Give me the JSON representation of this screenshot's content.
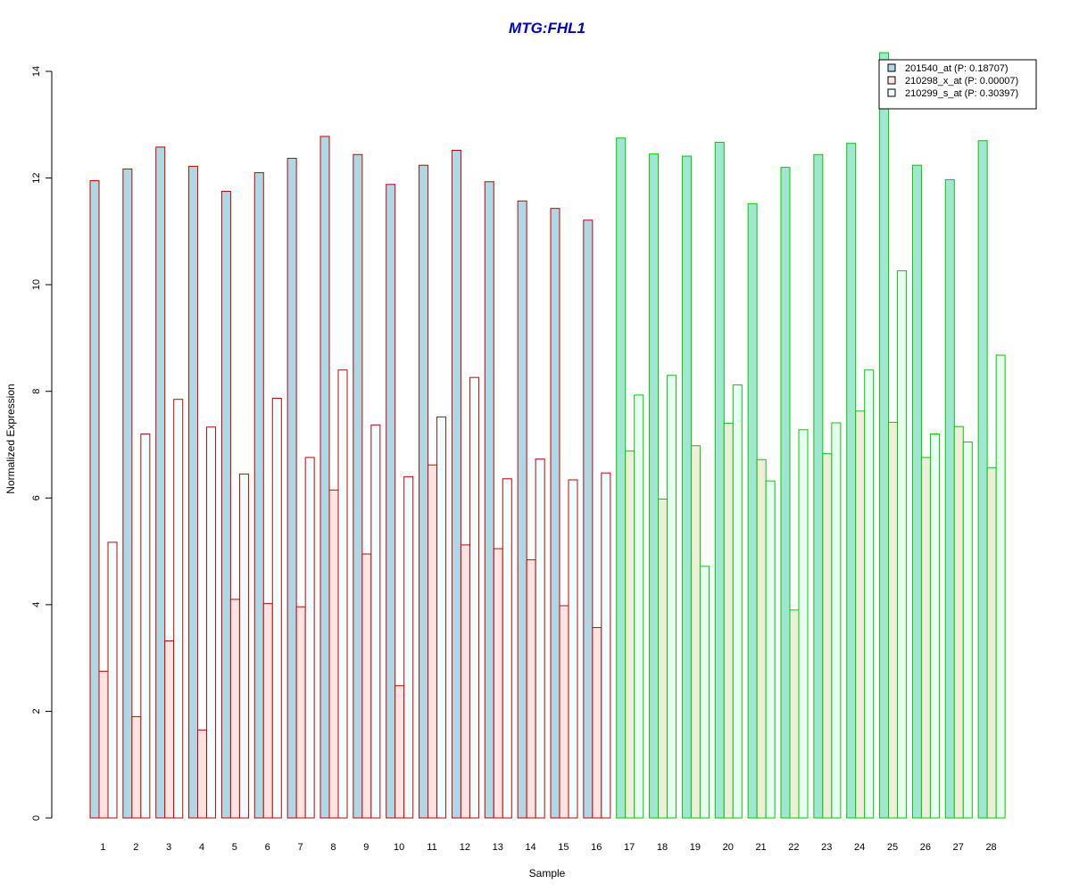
{
  "chart_data": {
    "type": "bar",
    "title": "MTG:FHL1",
    "xlabel": "Sample",
    "ylabel": "Normalized Expression",
    "ylim": [
      0,
      14
    ],
    "yticks": [
      "0",
      "2",
      "4",
      "6",
      "8",
      "10",
      "12",
      "14"
    ],
    "categories": [
      "1",
      "2",
      "3",
      "4",
      "5",
      "6",
      "7",
      "8",
      "9",
      "10",
      "11",
      "12",
      "13",
      "14",
      "15",
      "16",
      "17",
      "18",
      "19",
      "20",
      "21",
      "22",
      "23",
      "24",
      "25",
      "26",
      "27",
      "28"
    ],
    "group_border_colors": [
      "#cc0000",
      "#cc0000",
      "#cc0000",
      "#cc0000",
      "#cc0000",
      "#cc0000",
      "#cc0000",
      "#cc0000",
      "#cc0000",
      "#cc0000",
      "#cc0000",
      "#cc0000",
      "#cc0000",
      "#cc0000",
      "#cc0000",
      "#cc0000",
      "#00cc00",
      "#00cc00",
      "#00cc00",
      "#00cc00",
      "#00cc00",
      "#00cc00",
      "#00cc00",
      "#00cc00",
      "#00cc00",
      "#00cc00",
      "#00cc00",
      "#00cc00"
    ],
    "series": [
      {
        "name": "201540_at (P: 0.18707)",
        "colors": [
          "#add8e6",
          "#a0e6d0"
        ],
        "values": [
          11.95,
          12.17,
          12.58,
          12.22,
          11.75,
          12.1,
          12.37,
          12.78,
          12.44,
          11.88,
          12.24,
          12.52,
          11.93,
          11.57,
          11.43,
          11.21,
          12.75,
          12.45,
          12.41,
          12.67,
          11.52,
          12.2,
          12.44,
          12.65,
          14.35,
          12.24,
          11.97,
          12.7
        ]
      },
      {
        "name": "210298_x_at (P: 0.00007)",
        "colors": [
          "#ffe4e1",
          "#f0eed8"
        ],
        "values": [
          2.75,
          1.9,
          3.32,
          1.65,
          4.1,
          4.02,
          3.96,
          6.15,
          4.95,
          2.48,
          6.62,
          5.12,
          5.05,
          4.84,
          3.98,
          3.57,
          6.88,
          5.98,
          6.98,
          7.4,
          6.72,
          3.9,
          6.83,
          7.63,
          7.42,
          6.76,
          7.34,
          6.57
        ]
      },
      {
        "name": "210299_s_at (P: 0.30397)",
        "colors": [
          "#f0ffff",
          "#e6fff0"
        ],
        "values": [
          5.17,
          7.2,
          7.85,
          7.33,
          6.45,
          7.87,
          6.76,
          8.4,
          7.37,
          6.4,
          7.52,
          8.26,
          6.36,
          6.73,
          6.34,
          6.47,
          7.93,
          8.3,
          4.72,
          8.12,
          6.32,
          7.28,
          7.41,
          8.4,
          10.26,
          7.2,
          7.05,
          8.68
        ]
      }
    ],
    "legend_position": "top-right",
    "grid": false
  }
}
